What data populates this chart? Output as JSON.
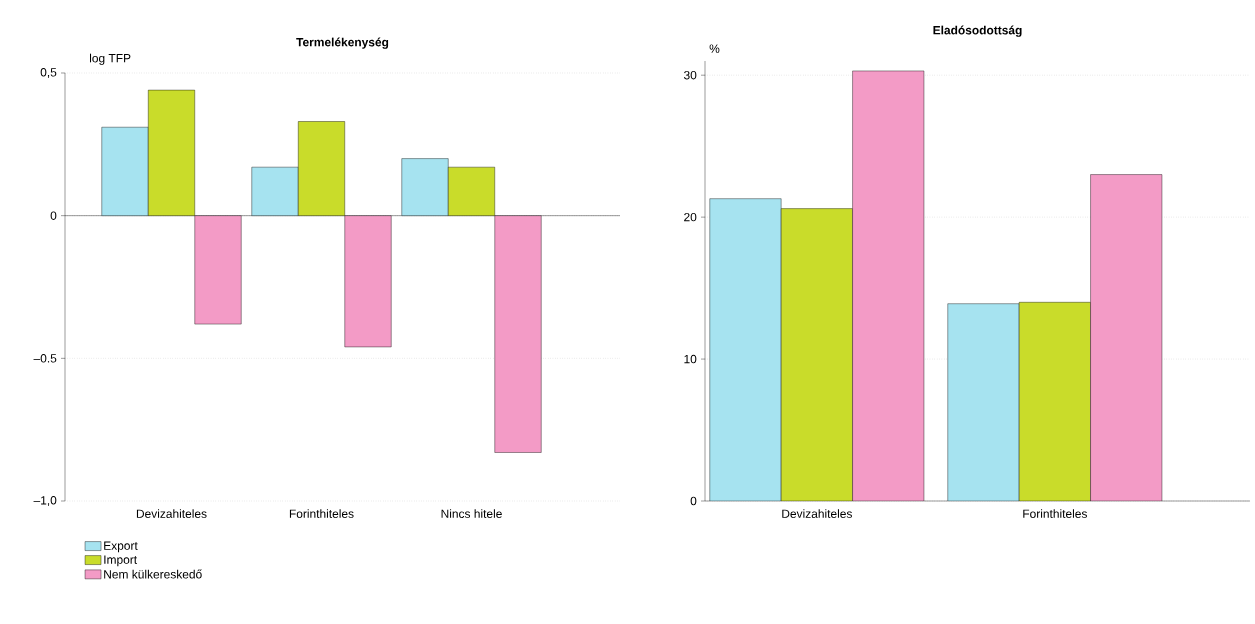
{
  "chart_data": [
    {
      "type": "bar",
      "title": "Termelékenység",
      "ylabel": "log TFP",
      "categories": [
        "Devizahiteles",
        "Forinthiteles",
        "Nincs hitele"
      ],
      "series": [
        {
          "name": "Export",
          "color": "#a6e3f0",
          "values": [
            0.31,
            0.17,
            0.2
          ]
        },
        {
          "name": "Import",
          "color": "#c9dc2a",
          "values": [
            0.44,
            0.33,
            0.17
          ]
        },
        {
          "name": "Nem külkereskedő",
          "color": "#f39bc6",
          "values": [
            -0.38,
            -0.46,
            -0.83
          ]
        }
      ],
      "ylim": [
        -1.0,
        0.5
      ],
      "yticks": [
        {
          "value": 0.5,
          "label": "0,5"
        },
        0,
        {
          "value": -0.5,
          "label": "–0.5"
        },
        {
          "value": -1.0,
          "label": "–1,0"
        }
      ],
      "grid": "y",
      "legend": "bottom left"
    },
    {
      "type": "bar",
      "title": "Eladósodottság",
      "ylabel": "%",
      "categories": [
        "Devizahiteles",
        "Forinthiteles"
      ],
      "series": [
        {
          "color": "#a6e3f0",
          "values": [
            21.3,
            13.9
          ]
        },
        {
          "color": "#c9dc2a",
          "values": [
            20.6,
            14.0
          ]
        },
        {
          "color": "#f39bc6",
          "values": [
            30.3,
            23.0
          ]
        }
      ],
      "ylim": [
        0,
        31
      ],
      "yticks": [
        0,
        10,
        20,
        30
      ],
      "grid": "y"
    }
  ]
}
